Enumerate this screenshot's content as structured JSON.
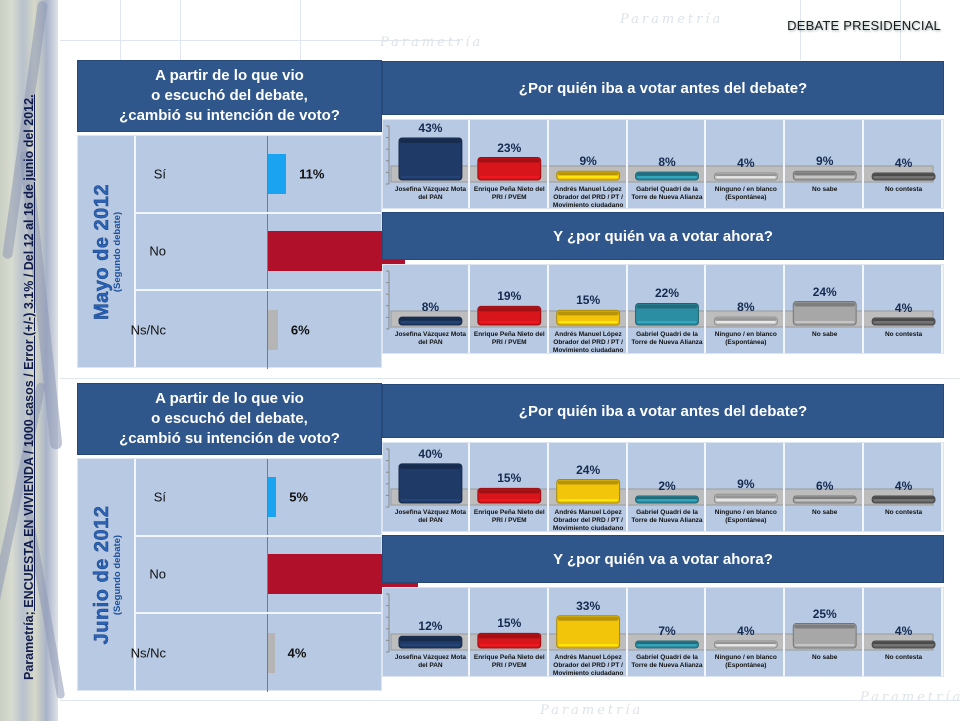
{
  "page_title": "DEBATE PRESIDENCIAL",
  "source_note": {
    "prefix": "Parametría;",
    "text": " ENCUESTA EN VIVIENDA / 1000 casos / Error (+/-) 3.1% / Del 12 al 16 de junio del 2012."
  },
  "watermark": "Parametría",
  "colors": {
    "header_blue": "#30578c",
    "panel_bg": "#b7c9e3",
    "si": "#1aa3f0",
    "no": "#b0102a",
    "nsnc": "#b5b5b5",
    "pan": "#1f3a66",
    "pri": "#d7151b",
    "prd": "#f2c40a",
    "panal": "#2c8ea3",
    "ninguno": "#c6c6c6",
    "no_sabe": "#a7a7a7",
    "no_contesta": "#646464"
  },
  "sections": [
    {
      "month_title": "Mayo de 2012",
      "month_subtitle": "(Segundo debate)",
      "question_lines": [
        "A partir de lo que vio",
        "o escuchó del debate,",
        "¿cambió su intención de voto?"
      ],
      "before_title": "¿Por quién iba a votar antes del debate?",
      "after_title": "Y ¿por quién va a votar ahora?"
    },
    {
      "month_title": "Junio de 2012",
      "month_subtitle": "(Segundo debate)",
      "question_lines": [
        "A partir de lo que vio",
        "o escuchó del debate,",
        "¿cambió su intención de voto?"
      ],
      "before_title": "¿Por quién iba a votar antes del debate?",
      "after_title": "Y ¿por quién va a votar ahora?"
    }
  ],
  "chart_data": [
    {
      "id": "mayo-cambio",
      "type": "bar",
      "orientation": "horizontal",
      "title": "A partir de lo que vio o escuchó del debate, ¿cambió su intención de voto?",
      "group": "Mayo de 2012 (Segundo debate)",
      "categories": [
        "Sí",
        "No",
        "Ns/Nc"
      ],
      "values": [
        11,
        83,
        6
      ],
      "labels": [
        "11%",
        "83%",
        "6%"
      ],
      "unit": "%",
      "xlim": [
        0,
        100
      ]
    },
    {
      "id": "mayo-antes",
      "type": "bar",
      "title": "¿Por quién iba a votar antes del debate?",
      "group": "Mayo de 2012 (Segundo debate)",
      "categories": [
        "Josefina Vázquez Mota del PAN",
        "Enrique Peña Nieto del PRI / PVEM",
        "Andrés Manuel López Obrador del PRD / PT / Movimiento ciudadano",
        "Gabriel Quadri de la Torre de Nueva Alianza",
        "Ninguno / en blanco (Espontánea)",
        "No sabe",
        "No contesta"
      ],
      "values": [
        43,
        23,
        9,
        8,
        4,
        9,
        4
      ],
      "labels": [
        "43%",
        "23%",
        "9%",
        "8%",
        "4%",
        "9%",
        "4%"
      ],
      "unit": "%",
      "ylim": [
        0,
        50
      ]
    },
    {
      "id": "mayo-ahora",
      "type": "bar",
      "title": "Y ¿por quién va a votar ahora?",
      "group": "Mayo de 2012 (Segundo debate)",
      "categories": [
        "Josefina Vázquez Mota del PAN",
        "Enrique Peña Nieto del PRI / PVEM",
        "Andrés Manuel López Obrador del PRD / PT / Movimiento ciudadano",
        "Gabriel Quadri de la Torre de Nueva Alianza",
        "Ninguno / en blanco (Espontánea)",
        "No sabe",
        "No contesta"
      ],
      "values": [
        8,
        19,
        15,
        22,
        8,
        24,
        4
      ],
      "labels": [
        "8%",
        "19%",
        "15%",
        "22%",
        "8%",
        "24%",
        "4%"
      ],
      "unit": "%",
      "ylim": [
        0,
        50
      ]
    },
    {
      "id": "junio-cambio",
      "type": "bar",
      "orientation": "horizontal",
      "title": "A partir de lo que vio o escuchó del debate, ¿cambió su intención de voto?",
      "group": "Junio de 2012 (Segundo debate)",
      "categories": [
        "Sí",
        "No",
        "Ns/Nc"
      ],
      "values": [
        5,
        91,
        4
      ],
      "labels": [
        "5%",
        "91%",
        "4%"
      ],
      "unit": "%",
      "xlim": [
        0,
        100
      ]
    },
    {
      "id": "junio-antes",
      "type": "bar",
      "title": "¿Por quién iba a votar antes del debate?",
      "group": "Junio de 2012 (Segundo debate)",
      "categories": [
        "Josefina Vázquez Mota del PAN",
        "Enrique Peña Nieto del PRI / PVEM",
        "Andrés Manuel López Obrador del PRD / PT / Movimiento ciudadano",
        "Gabriel Quadri de la Torre de Nueva Alianza",
        "Ninguno / en blanco (Espontánea)",
        "No sabe",
        "No contesta"
      ],
      "values": [
        40,
        15,
        24,
        2,
        9,
        6,
        4
      ],
      "labels": [
        "40%",
        "15%",
        "24%",
        "2%",
        "9%",
        "6%",
        "4%"
      ],
      "unit": "%",
      "ylim": [
        0,
        50
      ]
    },
    {
      "id": "junio-ahora",
      "type": "bar",
      "title": "Y ¿por quién va a votar ahora?",
      "group": "Junio de 2012 (Segundo debate)",
      "categories": [
        "Josefina Vázquez Mota del PAN",
        "Enrique Peña Nieto del PRI / PVEM",
        "Andrés Manuel López Obrador del PRD / PT / Movimiento ciudadano",
        "Gabriel Quadri de la Torre de Nueva Alianza",
        "Ninguno / en blanco (Espontánea)",
        "No sabe",
        "No contesta"
      ],
      "values": [
        12,
        15,
        33,
        7,
        4,
        25,
        4
      ],
      "labels": [
        "12%",
        "15%",
        "33%",
        "7%",
        "4%",
        "25%",
        "4%"
      ],
      "unit": "%",
      "ylim": [
        0,
        50
      ]
    }
  ]
}
